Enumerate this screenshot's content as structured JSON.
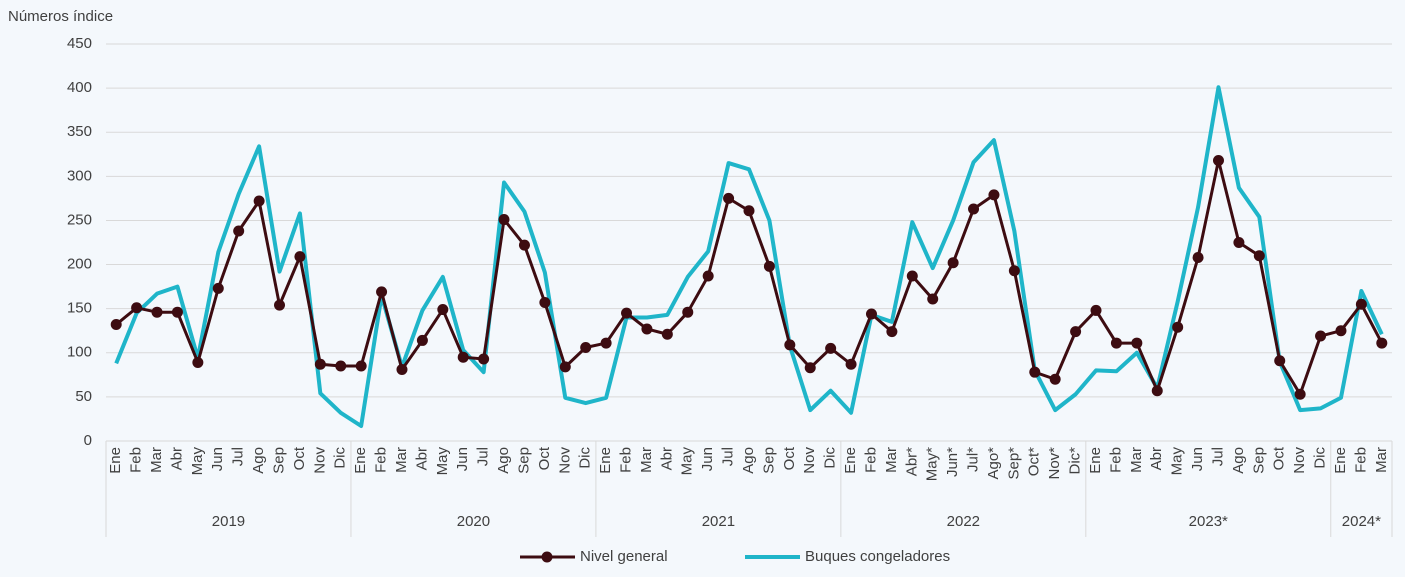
{
  "chart_data": {
    "type": "line",
    "y_label": "Números índice",
    "groups": [
      {
        "label": "2019",
        "categories": [
          "Ene",
          "Feb",
          "Mar",
          "Abr",
          "May",
          "Jun",
          "Jul",
          "Ago",
          "Sep",
          "Oct",
          "Nov",
          "Dic"
        ]
      },
      {
        "label": "2020",
        "categories": [
          "Ene",
          "Feb",
          "Mar",
          "Abr",
          "May",
          "Jun",
          "Jul",
          "Ago",
          "Sep",
          "Oct",
          "Nov",
          "Dic"
        ]
      },
      {
        "label": "2021",
        "categories": [
          "Ene",
          "Feb",
          "Mar",
          "Abr",
          "May",
          "Jun",
          "Jul",
          "Ago",
          "Sep",
          "Oct",
          "Nov",
          "Dic"
        ]
      },
      {
        "label": "2022",
        "categories": [
          "Ene",
          "Feb",
          "Mar",
          "Abr*",
          "May*",
          "Jun*",
          "Jul*",
          "Ago*",
          "Sep*",
          "Oct*",
          "Nov*",
          "Dic*"
        ]
      },
      {
        "label": "2023*",
        "categories": [
          "Ene",
          "Feb",
          "Mar",
          "Abr",
          "May",
          "Jun",
          "Jul",
          "Ago",
          "Sep",
          "Oct",
          "Nov",
          "Dic"
        ]
      },
      {
        "label": "2024*",
        "categories": [
          "Ene",
          "Feb",
          "Mar"
        ]
      }
    ],
    "series": [
      {
        "name": "Nivel general",
        "color": "#3d0c11",
        "marker": true,
        "values": [
          132,
          151,
          146,
          146,
          89,
          173,
          238,
          272,
          154,
          209,
          87,
          85,
          85,
          169,
          81,
          114,
          149,
          95,
          93,
          251,
          222,
          157,
          84,
          106,
          111,
          145,
          127,
          121,
          146,
          187,
          275,
          261,
          198,
          109,
          83,
          105,
          87,
          144,
          124,
          187,
          161,
          202,
          263,
          279,
          193,
          78,
          70,
          124,
          148,
          111,
          111,
          57,
          129,
          208,
          318,
          225,
          210,
          91,
          53,
          119,
          125,
          155,
          111
        ]
      },
      {
        "name": "Buques congeladores",
        "color": "#1fb5c9",
        "marker": false,
        "values": [
          88,
          145,
          167,
          175,
          94,
          214,
          280,
          334,
          192,
          258,
          54,
          32,
          17,
          165,
          84,
          148,
          186,
          103,
          78,
          293,
          260,
          191,
          49,
          43,
          49,
          140,
          140,
          143,
          186,
          215,
          315,
          308,
          250,
          108,
          35,
          57,
          32,
          143,
          135,
          248,
          196,
          250,
          316,
          341,
          238,
          80,
          35,
          53,
          80,
          79,
          100,
          60,
          158,
          265,
          401,
          287,
          254,
          90,
          35,
          37,
          49,
          170,
          121
        ]
      }
    ],
    "ylim": [
      0,
      450
    ],
    "yticks": [
      0,
      50,
      100,
      150,
      200,
      250,
      300,
      350,
      400,
      450
    ],
    "grid": true,
    "legend": "bottom"
  }
}
